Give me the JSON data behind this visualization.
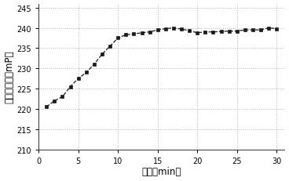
{
  "x": [
    1,
    2,
    3,
    4,
    5,
    6,
    7,
    8,
    9,
    10,
    11,
    12,
    13,
    14,
    15,
    16,
    17,
    18,
    19,
    20,
    21,
    22,
    23,
    24,
    25,
    26,
    27,
    28,
    29,
    30
  ],
  "y": [
    220.5,
    222.0,
    223.0,
    225.5,
    227.5,
    229.0,
    231.0,
    233.5,
    235.5,
    237.5,
    238.3,
    238.5,
    238.8,
    239.0,
    239.5,
    239.8,
    240.0,
    239.7,
    239.3,
    238.8,
    239.0,
    239.0,
    239.1,
    239.2,
    239.2,
    239.5,
    239.5,
    239.5,
    240.0,
    239.8
  ],
  "xlabel": "时间（min）",
  "ylabel": "荷光偏振值（mP）",
  "xlim": [
    0,
    31
  ],
  "ylim": [
    210,
    246
  ],
  "xticks": [
    0,
    5,
    10,
    15,
    20,
    25,
    30
  ],
  "yticks": [
    210,
    215,
    220,
    225,
    230,
    235,
    240,
    245
  ],
  "line_color": "#1a1a1a",
  "marker": "s",
  "markersize": 3.0,
  "linewidth": 0.9,
  "linestyle": "--",
  "bg_color": "#ffffff",
  "grid_color": "#b0b0b0"
}
